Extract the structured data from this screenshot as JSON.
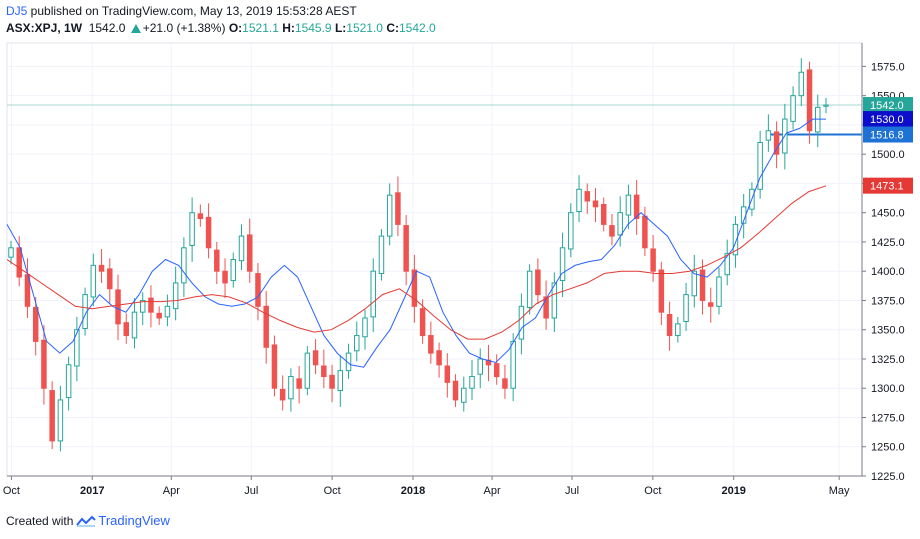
{
  "header": {
    "author": "DJ5",
    "published_text": " published on TradingView.com, May 13, 2019 15:53:28 AEST",
    "symbol": "ASX:XPJ, 1W",
    "last_price": "1542.0",
    "change": "+21.0 (+1.38%)",
    "open_label": "O:",
    "open": "1521.1",
    "high_label": "H:",
    "high": "1545.9",
    "low_label": "L:",
    "low": "1521.0",
    "close_label": "C:",
    "close": "1542.0"
  },
  "footer": {
    "created_with": "Created with",
    "brand": "TradingView"
  },
  "colors": {
    "up": "#26a69a",
    "down": "#ef5350",
    "up_fill": "#ffffff",
    "ma_fast": "#2962ff",
    "ma_slow": "#e53935",
    "tag_last": "#26a69a",
    "tag_fast": "#0d0dcc",
    "tag_level": "#1e72d6",
    "tag_slow": "#e53935"
  },
  "chart_data": {
    "type": "candlestick",
    "title": "ASX:XPJ, 1W",
    "y_range": [
      1225,
      1595
    ],
    "y_ticks": [
      "1575.0",
      "1550.0",
      "1525.0",
      "1500.0",
      "1475.0",
      "1450.0",
      "1425.0",
      "1400.0",
      "1375.0",
      "1350.0",
      "1325.0",
      "1300.0",
      "1275.0",
      "1250.0",
      "1225.0"
    ],
    "x_range": [
      "2016-09-26",
      "2019-05-27"
    ],
    "x_ticks": [
      {
        "date": "2016-10-01",
        "label": "Oct"
      },
      {
        "date": "2017-01-01",
        "label": "2017"
      },
      {
        "date": "2017-04-01",
        "label": "Apr"
      },
      {
        "date": "2017-07-01",
        "label": "Jul"
      },
      {
        "date": "2017-10-01",
        "label": "Oct"
      },
      {
        "date": "2018-01-01",
        "label": "2018"
      },
      {
        "date": "2018-04-01",
        "label": "Apr"
      },
      {
        "date": "2018-07-01",
        "label": "Jul"
      },
      {
        "date": "2018-10-01",
        "label": "Oct"
      },
      {
        "date": "2019-01-01",
        "label": "2019"
      },
      {
        "date": "2019-05-01",
        "label": "May"
      }
    ],
    "last_price_line": 1542.0,
    "horizontal_level": 1516.8,
    "price_tags": [
      {
        "value": 1542.0,
        "label": "1542.0",
        "role": "last"
      },
      {
        "value": 1530.0,
        "label": "1530.0",
        "role": "fast"
      },
      {
        "value": 1516.8,
        "label": "1516.8",
        "role": "level"
      },
      {
        "value": 1473.1,
        "label": "1473.1",
        "role": "slow"
      }
    ],
    "close_series": [
      1420,
      1395,
      1370,
      1340,
      1300,
      1255,
      1290,
      1320,
      1350,
      1380,
      1405,
      1400,
      1385,
      1355,
      1345,
      1365,
      1375,
      1365,
      1360,
      1370,
      1390,
      1420,
      1450,
      1445,
      1420,
      1400,
      1390,
      1410,
      1430,
      1400,
      1370,
      1335,
      1300,
      1290,
      1310,
      1300,
      1330,
      1320,
      1310,
      1300,
      1315,
      1330,
      1345,
      1360,
      1400,
      1430,
      1465,
      1440,
      1400,
      1370,
      1345,
      1330,
      1320,
      1305,
      1290,
      1300,
      1310,
      1325,
      1320,
      1310,
      1300,
      1340,
      1370,
      1400,
      1380,
      1360,
      1390,
      1420,
      1450,
      1470,
      1460,
      1455,
      1440,
      1430,
      1450,
      1465,
      1445,
      1420,
      1400,
      1365,
      1345,
      1355,
      1380,
      1400,
      1375,
      1370,
      1395,
      1415,
      1440,
      1455,
      1470,
      1510,
      1520,
      1500,
      1530,
      1550,
      1570,
      1520,
      1540,
      1542
    ],
    "series": [
      {
        "name": "",
        "color": "#2962ff",
        "values": [
          1440,
          1420,
          1380,
          1340,
          1330,
          1340,
          1365,
          1380,
          1370,
          1365,
          1380,
          1400,
          1410,
          1405,
          1390,
          1378,
          1372,
          1370,
          1372,
          1378,
          1395,
          1405,
          1395,
          1370,
          1345,
          1330,
          1320,
          1318,
          1335,
          1350,
          1375,
          1400,
          1395,
          1365,
          1345,
          1330,
          1325,
          1322,
          1333,
          1352,
          1360,
          1380,
          1398,
          1405,
          1408,
          1410,
          1422,
          1440,
          1450,
          1440,
          1430,
          1410,
          1398,
          1395,
          1405,
          1420,
          1450,
          1480,
          1500,
          1518,
          1522,
          1530,
          1530
        ]
      },
      {
        "name": "",
        "color": "#e53935",
        "values": [
          1410,
          1400,
          1390,
          1380,
          1370,
          1368,
          1370,
          1372,
          1374,
          1374,
          1375,
          1378,
          1380,
          1378,
          1373,
          1365,
          1358,
          1352,
          1348,
          1350,
          1358,
          1368,
          1380,
          1385,
          1375,
          1362,
          1350,
          1342,
          1342,
          1348,
          1358,
          1372,
          1380,
          1385,
          1390,
          1398,
          1400,
          1400,
          1398,
          1398,
          1400,
          1405,
          1412,
          1420,
          1432,
          1445,
          1458,
          1468,
          1473
        ]
      }
    ]
  }
}
